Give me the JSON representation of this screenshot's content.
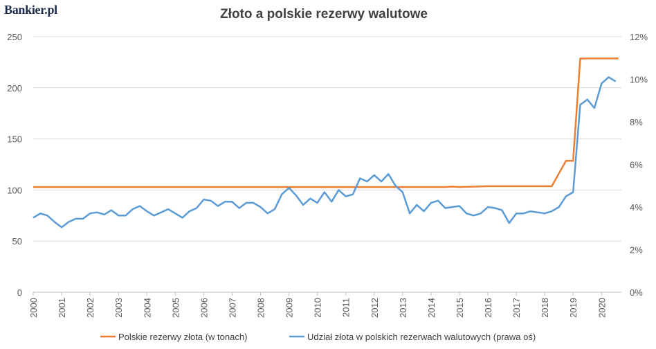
{
  "brand": {
    "logo_text": "Bankier.pl"
  },
  "chart_data": {
    "type": "line",
    "title": "Złoto a polskie rezerwy walutowe",
    "xlabel": "",
    "ylabel": "",
    "x_ticks": [
      "2000",
      "2001",
      "2002",
      "2003",
      "2004",
      "2005",
      "2006",
      "2007",
      "2008",
      "2009",
      "2010",
      "2011",
      "2012",
      "2013",
      "2014",
      "2015",
      "2016",
      "2017",
      "2018",
      "2019",
      "2020"
    ],
    "xlim": [
      2000,
      2020.7
    ],
    "y_left": {
      "range": [
        0,
        250
      ],
      "ticks": [
        "0",
        "50",
        "100",
        "150",
        "200",
        "250"
      ],
      "tick_values": [
        0,
        50,
        100,
        150,
        200,
        250
      ]
    },
    "y_right": {
      "range": [
        0,
        12
      ],
      "ticks": [
        "0%",
        "2%",
        "4%",
        "6%",
        "8%",
        "10%",
        "12%"
      ],
      "tick_values": [
        0,
        2,
        4,
        6,
        8,
        10,
        12
      ]
    },
    "grid": "horizontal",
    "legend_position": "bottom",
    "series": [
      {
        "name": "Polskie rezerwy złota (w tonach)",
        "axis": "left",
        "color": "#ed7d31",
        "points": [
          [
            2000.0,
            102.9
          ],
          [
            2014.5,
            102.9
          ],
          [
            2014.75,
            103.3
          ],
          [
            2015.0,
            102.9
          ],
          [
            2015.5,
            103.3
          ],
          [
            2016.0,
            103.7
          ],
          [
            2018.25,
            103.7
          ],
          [
            2018.75,
            128.6
          ],
          [
            2019.0,
            128.6
          ],
          [
            2019.25,
            228.6
          ],
          [
            2019.5,
            228.7
          ],
          [
            2020.6,
            228.7
          ]
        ]
      },
      {
        "name": "Udział złota w polskich rezerwach walutowych (prawa oś)",
        "axis": "right",
        "color": "#5b9bd5",
        "points": [
          [
            2000.0,
            3.5
          ],
          [
            2000.25,
            3.7
          ],
          [
            2000.5,
            3.6
          ],
          [
            2000.75,
            3.3
          ],
          [
            2001.0,
            3.05
          ],
          [
            2001.25,
            3.3
          ],
          [
            2001.5,
            3.45
          ],
          [
            2001.75,
            3.45
          ],
          [
            2002.0,
            3.7
          ],
          [
            2002.25,
            3.75
          ],
          [
            2002.5,
            3.65
          ],
          [
            2002.75,
            3.85
          ],
          [
            2003.0,
            3.6
          ],
          [
            2003.25,
            3.6
          ],
          [
            2003.5,
            3.9
          ],
          [
            2003.75,
            4.05
          ],
          [
            2004.0,
            3.8
          ],
          [
            2004.25,
            3.6
          ],
          [
            2004.5,
            3.75
          ],
          [
            2004.75,
            3.9
          ],
          [
            2005.0,
            3.7
          ],
          [
            2005.25,
            3.5
          ],
          [
            2005.5,
            3.8
          ],
          [
            2005.75,
            3.95
          ],
          [
            2006.0,
            4.35
          ],
          [
            2006.25,
            4.3
          ],
          [
            2006.5,
            4.05
          ],
          [
            2006.75,
            4.25
          ],
          [
            2007.0,
            4.25
          ],
          [
            2007.25,
            3.95
          ],
          [
            2007.5,
            4.2
          ],
          [
            2007.75,
            4.2
          ],
          [
            2008.0,
            4.0
          ],
          [
            2008.25,
            3.7
          ],
          [
            2008.5,
            3.9
          ],
          [
            2008.75,
            4.6
          ],
          [
            2009.0,
            4.9
          ],
          [
            2009.25,
            4.55
          ],
          [
            2009.5,
            4.1
          ],
          [
            2009.75,
            4.4
          ],
          [
            2010.0,
            4.2
          ],
          [
            2010.25,
            4.7
          ],
          [
            2010.5,
            4.25
          ],
          [
            2010.75,
            4.8
          ],
          [
            2011.0,
            4.5
          ],
          [
            2011.25,
            4.6
          ],
          [
            2011.5,
            5.35
          ],
          [
            2011.75,
            5.2
          ],
          [
            2012.0,
            5.5
          ],
          [
            2012.25,
            5.2
          ],
          [
            2012.5,
            5.55
          ],
          [
            2012.75,
            5.0
          ],
          [
            2013.0,
            4.7
          ],
          [
            2013.25,
            3.7
          ],
          [
            2013.5,
            4.1
          ],
          [
            2013.75,
            3.8
          ],
          [
            2014.0,
            4.2
          ],
          [
            2014.25,
            4.3
          ],
          [
            2014.5,
            3.95
          ],
          [
            2014.75,
            4.0
          ],
          [
            2015.0,
            4.05
          ],
          [
            2015.25,
            3.7
          ],
          [
            2015.5,
            3.6
          ],
          [
            2015.75,
            3.7
          ],
          [
            2016.0,
            4.0
          ],
          [
            2016.25,
            3.95
          ],
          [
            2016.5,
            3.85
          ],
          [
            2016.75,
            3.25
          ],
          [
            2017.0,
            3.7
          ],
          [
            2017.25,
            3.7
          ],
          [
            2017.5,
            3.8
          ],
          [
            2017.75,
            3.75
          ],
          [
            2018.0,
            3.7
          ],
          [
            2018.25,
            3.8
          ],
          [
            2018.5,
            4.0
          ],
          [
            2018.75,
            4.5
          ],
          [
            2019.0,
            4.7
          ],
          [
            2019.25,
            8.8
          ],
          [
            2019.5,
            9.05
          ],
          [
            2019.75,
            8.65
          ],
          [
            2020.0,
            9.8
          ],
          [
            2020.25,
            10.1
          ],
          [
            2020.5,
            9.9
          ]
        ]
      }
    ]
  }
}
